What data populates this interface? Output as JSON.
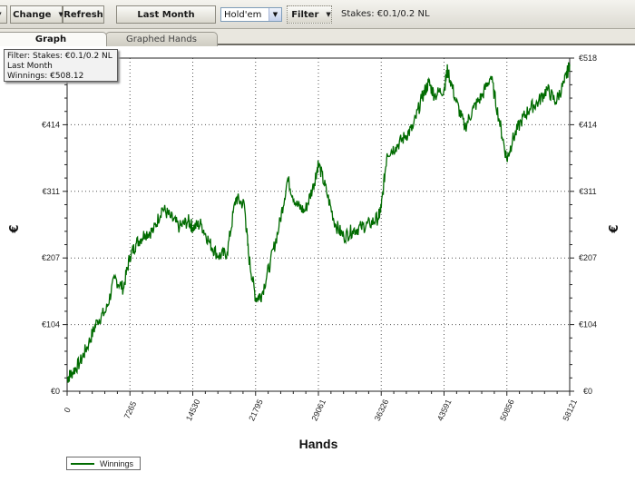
{
  "toolbar": {
    "change_label": "Change",
    "refresh_label": "Refresh",
    "last_month_label": "Last Month",
    "game_select_value": "Hold'em",
    "filter_label": "Filter",
    "stakes_status": "Stakes: €0.1/0.2 NL"
  },
  "tabs": [
    {
      "label": "Graph",
      "active": true
    },
    {
      "label": "Graphed Hands",
      "active": false
    }
  ],
  "tooltip": {
    "line1": "Filter: Stakes: €0.1/0.2 NL",
    "line2": "Last Month",
    "line3": "Winnings: €508.12"
  },
  "colors": {
    "series": "#006b00",
    "grid": "#555555"
  },
  "chart_data": {
    "type": "line",
    "xlabel": "Hands",
    "ylabel": "€",
    "x_ticks": [
      "0",
      "7265",
      "14530",
      "21795",
      "29061",
      "36326",
      "43591",
      "50856",
      "58121"
    ],
    "y_ticks": [
      "€0",
      "€104",
      "€207",
      "€311",
      "€414",
      "€518"
    ],
    "xlim": [
      0,
      58121
    ],
    "ylim": [
      0,
      518
    ],
    "grid": true,
    "legend_position": "bottom-left",
    "series": [
      {
        "name": "Winnings",
        "x": [
          0,
          500,
          1500,
          2500,
          3500,
          4500,
          5500,
          6500,
          7265,
          8000,
          9000,
          10000,
          11000,
          12000,
          13000,
          14000,
          14530,
          15500,
          16500,
          17500,
          18500,
          19500,
          20500,
          21000,
          21795,
          22500,
          23500,
          24500,
          25500,
          26500,
          27500,
          28500,
          29061,
          30000,
          31000,
          32000,
          33000,
          34000,
          35000,
          36000,
          36326,
          37000,
          38000,
          39000,
          40000,
          41000,
          41800,
          42500,
          43591,
          44000,
          45000,
          46000,
          47000,
          48000,
          49000,
          50000,
          50856,
          51500,
          52500,
          53500,
          54500,
          55500,
          56500,
          57500,
          58121
        ],
        "y": [
          20,
          28,
          45,
          75,
          110,
          125,
          175,
          160,
          210,
          230,
          245,
          250,
          285,
          270,
          255,
          265,
          255,
          260,
          230,
          210,
          215,
          300,
          290,
          210,
          145,
          150,
          200,
          255,
          330,
          290,
          280,
          320,
          355,
          310,
          260,
          240,
          250,
          255,
          260,
          270,
          285,
          370,
          380,
          395,
          410,
          455,
          480,
          460,
          470,
          500,
          450,
          410,
          440,
          460,
          490,
          420,
          360,
          390,
          420,
          440,
          450,
          470,
          450,
          480,
          508
        ]
      }
    ]
  }
}
